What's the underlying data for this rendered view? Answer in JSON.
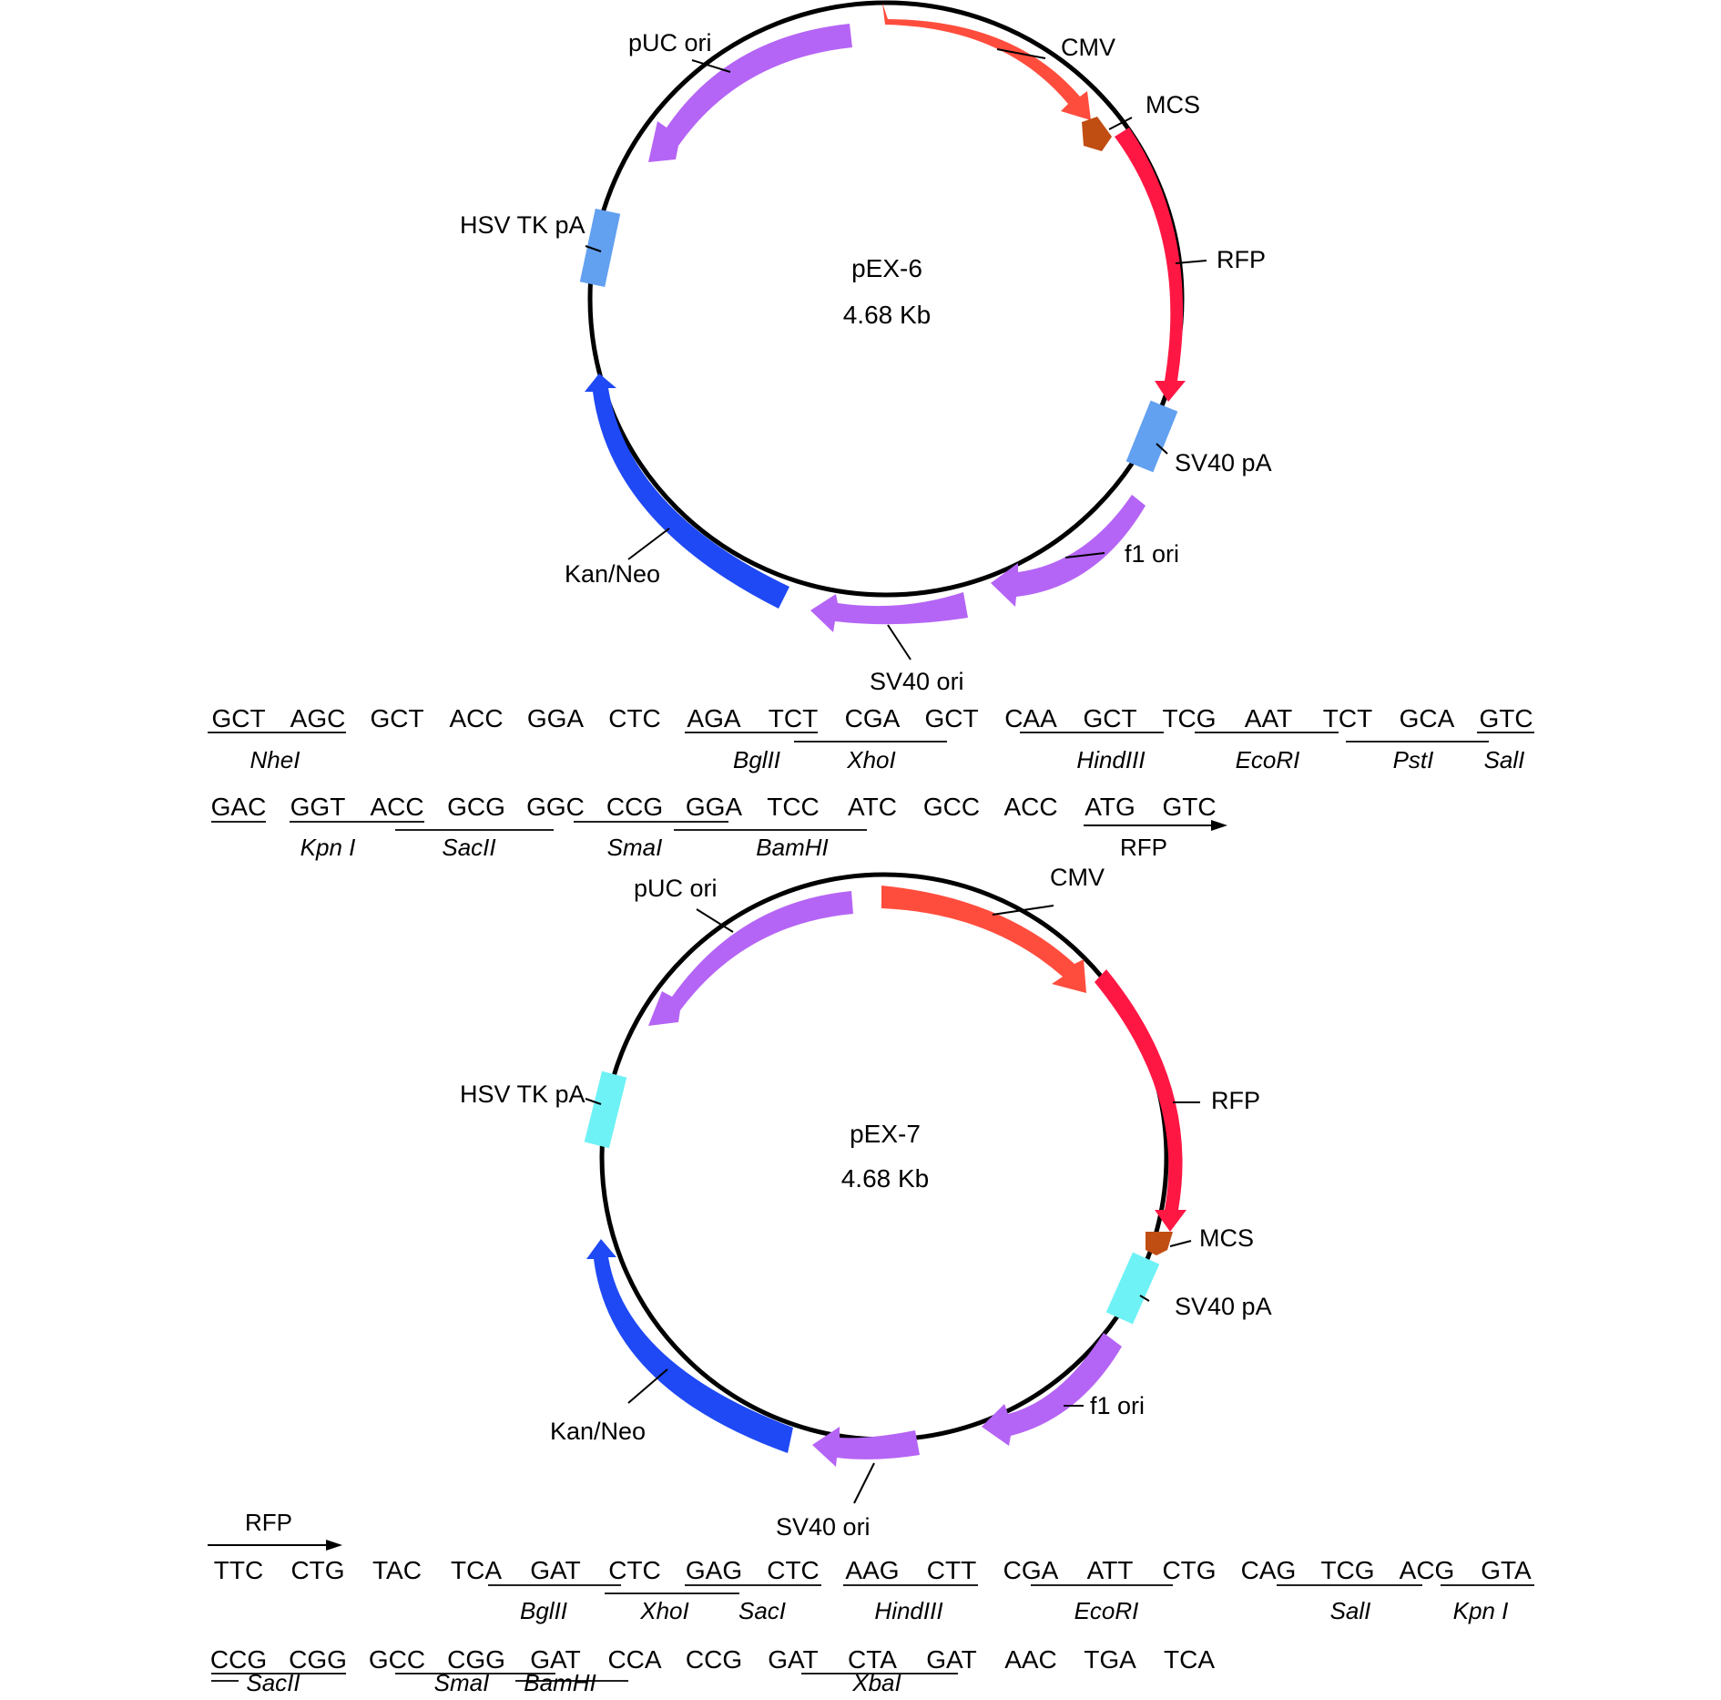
{
  "plasmids": [
    {
      "name": "pEX-6",
      "size": "4.68 Kb",
      "features": [
        {
          "label": "CMV",
          "color": "#ff4d3d",
          "icon": "forward-arrow"
        },
        {
          "label": "MCS",
          "color": "#c04d12",
          "icon": "mcs-marker"
        },
        {
          "label": "RFP",
          "color": "#ff1744",
          "icon": "forward-arrow"
        },
        {
          "label": "SV40 pA",
          "color": "#62a0f0",
          "icon": "block"
        },
        {
          "label": "f1 ori",
          "color": "#b565f5",
          "icon": "reverse-arrow"
        },
        {
          "label": "SV40 ori",
          "color": "#b565f5",
          "icon": "reverse-arrow"
        },
        {
          "label": "Kan/Neo",
          "color": "#1f49f5",
          "icon": "reverse-arrow"
        },
        {
          "label": "HSV TK pA",
          "color": "#62a0f0",
          "icon": "block"
        },
        {
          "label": "pUC ori",
          "color": "#b565f5",
          "icon": "reverse-arrow"
        }
      ],
      "sequence_rows": [
        {
          "codons": [
            "GCT",
            "AGC",
            "GCT",
            "ACC",
            "GGA",
            "CTC",
            "AGA",
            "TCT",
            "CGA",
            "GCT",
            "CAA",
            "GCT",
            "TCG",
            "AAT",
            "TCT",
            "GCA",
            "GTC"
          ],
          "sites": [
            "NheI",
            "BglII",
            "XhoI",
            "HindIII",
            "EcoRI",
            "PstI",
            "SalI"
          ]
        },
        {
          "codons": [
            "GAC",
            "GGT",
            "ACC",
            "GCG",
            "GGC",
            "CCG",
            "GGA",
            "TCC",
            "ATC",
            "GCC",
            "ACC",
            "ATG",
            "GTC"
          ],
          "sites": [
            "Kpn I",
            "SacII",
            "SmaI",
            "BamHI"
          ],
          "arrow_label": "RFP"
        }
      ]
    },
    {
      "name": "pEX-7",
      "size": "4.68 Kb",
      "features": [
        {
          "label": "CMV",
          "color": "#ff4d3d",
          "icon": "forward-arrow"
        },
        {
          "label": "RFP",
          "color": "#ff1744",
          "icon": "forward-arrow"
        },
        {
          "label": "MCS",
          "color": "#c04d12",
          "icon": "mcs-marker"
        },
        {
          "label": "SV40 pA",
          "color": "#6ef2f5",
          "icon": "block"
        },
        {
          "label": "f1 ori",
          "color": "#b565f5",
          "icon": "reverse-arrow"
        },
        {
          "label": "SV40 ori",
          "color": "#b565f5",
          "icon": "reverse-arrow"
        },
        {
          "label": "Kan/Neo",
          "color": "#1f49f5",
          "icon": "reverse-arrow"
        },
        {
          "label": "HSV TK pA",
          "color": "#6ef2f5",
          "icon": "block"
        },
        {
          "label": "pUC ori",
          "color": "#b565f5",
          "icon": "reverse-arrow"
        }
      ],
      "sequence_rows": [
        {
          "arrow_label": "RFP",
          "codons": [
            "TTC",
            "CTG",
            "TAC",
            "TCA",
            "GAT",
            "CTC",
            "GAG",
            "CTC",
            "AAG",
            "CTT",
            "CGA",
            "ATT",
            "CTG",
            "CAG",
            "TCG",
            "ACG",
            "GTA"
          ],
          "sites": [
            "BglII",
            "XhoI",
            "SacI",
            "HindIII",
            "EcoRI",
            "SalI",
            "Kpn I"
          ]
        },
        {
          "codons": [
            "CCG",
            "CGG",
            "GCC",
            "CGG",
            "GAT",
            "CCA",
            "CCG",
            "GAT",
            "CTA",
            "GAT",
            "AAC",
            "TGA",
            "TCA"
          ],
          "sites": [
            "SacII",
            "SmaI",
            "BamHI",
            "XbaI"
          ]
        }
      ]
    }
  ]
}
